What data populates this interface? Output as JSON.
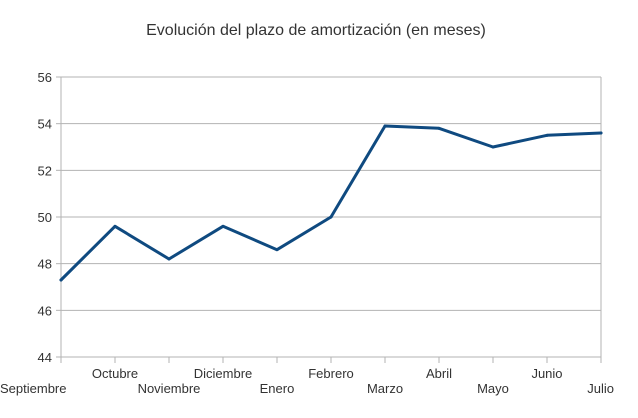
{
  "chart_data": {
    "type": "line",
    "title": "Evolución del plazo de amortización (en meses)",
    "xlabel": "",
    "ylabel": "",
    "categories": [
      "Septiembre",
      "Octubre",
      "Noviembre",
      "Diciembre",
      "Enero",
      "Febrero",
      "Marzo",
      "Abril",
      "Mayo",
      "Junio",
      "Julio"
    ],
    "series": [
      {
        "values": [
          47.3,
          49.6,
          48.2,
          49.6,
          48.6,
          50.0,
          53.9,
          53.8,
          53.0,
          53.5,
          53.6
        ],
        "color": "#0f4a80"
      }
    ],
    "ylim": [
      44,
      56
    ],
    "yticks": [
      44,
      46,
      48,
      50,
      52,
      54,
      56
    ],
    "grid": true,
    "legend": "none"
  }
}
